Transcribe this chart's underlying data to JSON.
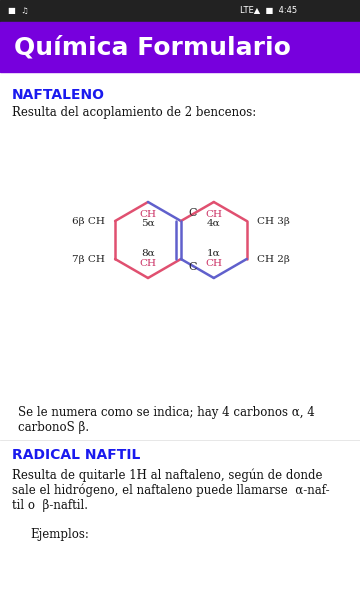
{
  "title": "Química Formulario",
  "title_bg": "#7700dd",
  "title_color": "#ffffff",
  "title_fontsize": 18,
  "section1_title": "NAFTALENO",
  "section1_color": "#1a1aee",
  "section1_text": "Resulta del acoplamiento de 2 bencenos:",
  "note_text": "Se le numera como se indica; hay 4 carbonos α, 4\ncarbonoS β.",
  "section2_title": "RADICAL NAFTIL",
  "section2_color": "#1a1aee",
  "section2_text": "Resulta de quitarle 1H al naftaleno, según de donde\nsale el hidrógeno, el naftaleno puede llamarse  α-naf-\ntil o  β-naftil.",
  "ejemplos_text": "    Ejemplos:",
  "bg_color": "#f8f8f8",
  "text_color": "#111111",
  "bond_red": "#e05070",
  "bond_blue": "#6060cc",
  "label_red": "#cc3366",
  "label_black": "#222222",
  "status_bg": "#222222"
}
